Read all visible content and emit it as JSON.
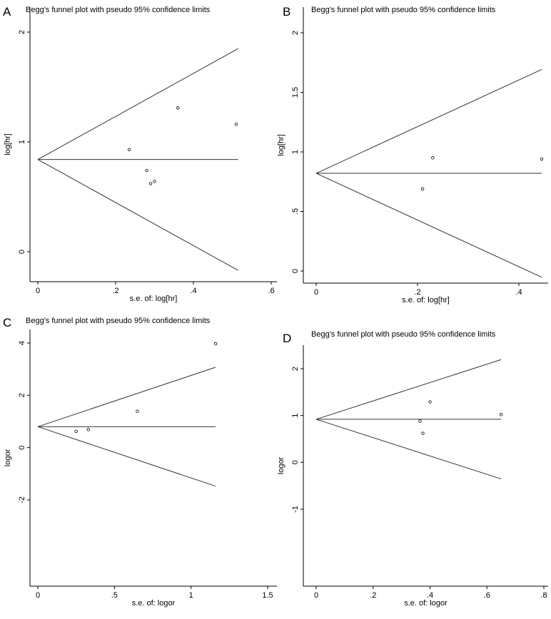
{
  "chart_data": [
    {
      "panel": "A",
      "type": "scatter",
      "title": "Begg's funnel plot with pseudo 95% confidence limits",
      "xlabel": "s.e. of: log[hr]",
      "ylabel": "log[hr]",
      "xlim": [
        0,
        0.6
      ],
      "ylim": [
        -0.2,
        2
      ],
      "xticks": [
        0,
        0.2,
        0.4,
        0.6
      ],
      "xtick_labels": [
        "0",
        ".2",
        ".4",
        ".6"
      ],
      "yticks": [
        0,
        1,
        2
      ],
      "ytick_labels": [
        "0",
        "1",
        "2"
      ],
      "pooled_estimate": 0.84,
      "limit_max_se": 0.515,
      "points": [
        {
          "x": 0.235,
          "y": 0.93
        },
        {
          "x": 0.28,
          "y": 0.74
        },
        {
          "x": 0.29,
          "y": 0.62
        },
        {
          "x": 0.3,
          "y": 0.64
        },
        {
          "x": 0.36,
          "y": 1.31
        },
        {
          "x": 0.51,
          "y": 1.16
        }
      ]
    },
    {
      "panel": "B",
      "type": "scatter",
      "title": "Begg's funnel plot with pseudo 95% confidence limits",
      "xlabel": "s.e. of: log[hr]",
      "ylabel": "log[hr]",
      "xlim": [
        0,
        0.45
      ],
      "ylim": [
        -0.1,
        2
      ],
      "xticks": [
        0,
        0.2,
        0.4
      ],
      "xtick_labels": [
        "0",
        ".2",
        ".4"
      ],
      "yticks": [
        0,
        0.5,
        1,
        1.5,
        2
      ],
      "ytick_labels": [
        "0",
        ".5",
        "1",
        "1.5",
        "2"
      ],
      "pooled_estimate": 0.82,
      "limit_max_se": 0.445,
      "points": [
        {
          "x": 0.21,
          "y": 0.69
        },
        {
          "x": 0.23,
          "y": 0.95
        },
        {
          "x": 0.445,
          "y": 0.94
        }
      ]
    },
    {
      "panel": "C",
      "type": "scatter",
      "title": "Begg's funnel plot with pseudo 95% confidence limits",
      "xlabel": "s.e. of: logor",
      "ylabel": "logor",
      "xlim": [
        0,
        1.5
      ],
      "ylim": [
        -2,
        4
      ],
      "xticks": [
        0,
        0.5,
        1,
        1.5
      ],
      "xtick_labels": [
        "0",
        ".5",
        "1",
        "1.5"
      ],
      "yticks": [
        -2,
        0,
        2,
        4
      ],
      "ytick_labels": [
        "-2",
        "0",
        "2",
        "4"
      ],
      "pooled_estimate": 0.8,
      "limit_max_se": 1.16,
      "points": [
        {
          "x": 0.25,
          "y": 0.62
        },
        {
          "x": 0.33,
          "y": 0.69
        },
        {
          "x": 0.65,
          "y": 1.39
        },
        {
          "x": 1.16,
          "y": 3.97
        }
      ]
    },
    {
      "panel": "D",
      "type": "scatter",
      "title": "Begg's funnel plot with pseudo 95% confidence limits",
      "xlabel": "s.e. of: logor",
      "ylabel": "logor",
      "xlim": [
        0,
        0.8
      ],
      "ylim": [
        -1,
        2.3
      ],
      "xticks": [
        0,
        0.2,
        0.4,
        0.6,
        0.8
      ],
      "xtick_labels": [
        "0",
        ".2",
        ".4",
        ".6",
        ".8"
      ],
      "yticks": [
        -1,
        0,
        1,
        2
      ],
      "ytick_labels": [
        "-1",
        "0",
        "1",
        "2"
      ],
      "pooled_estimate": 0.92,
      "limit_max_se": 0.65,
      "points": [
        {
          "x": 0.365,
          "y": 0.88
        },
        {
          "x": 0.375,
          "y": 0.62
        },
        {
          "x": 0.4,
          "y": 1.29
        },
        {
          "x": 0.65,
          "y": 1.02
        }
      ]
    }
  ]
}
